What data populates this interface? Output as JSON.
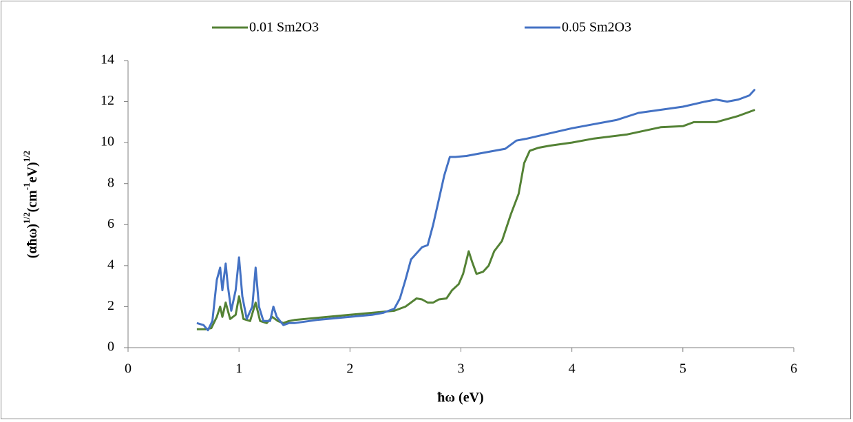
{
  "chart_data": {
    "type": "line",
    "x_label": "ħω (eV)",
    "y_label": [
      "(αħω)",
      "1/2",
      "(cm",
      "-1",
      "eV)",
      "1/2"
    ],
    "xlim": [
      0,
      6
    ],
    "xticks": [
      0,
      1,
      2,
      3,
      4,
      5,
      6
    ],
    "ylim": [
      0,
      14
    ],
    "yticks": [
      0,
      2,
      4,
      6,
      8,
      10,
      12,
      14
    ],
    "grid": false,
    "legend": "top",
    "series": [
      {
        "name": "0.01 Sm2O3",
        "color": "#548235",
        "x": [
          0.62,
          0.7,
          0.75,
          0.8,
          0.83,
          0.85,
          0.88,
          0.92,
          0.97,
          1.0,
          1.04,
          1.1,
          1.15,
          1.19,
          1.25,
          1.3,
          1.35,
          1.4,
          1.45,
          1.5,
          1.7,
          2.0,
          2.2,
          2.4,
          2.5,
          2.6,
          2.65,
          2.7,
          2.75,
          2.8,
          2.87,
          2.92,
          2.98,
          3.02,
          3.07,
          3.1,
          3.14,
          3.2,
          3.25,
          3.3,
          3.37,
          3.45,
          3.52,
          3.57,
          3.62,
          3.7,
          3.8,
          4.0,
          4.2,
          4.5,
          4.8,
          5.0,
          5.1,
          5.3,
          5.5,
          5.6,
          5.65
        ],
        "values": [
          0.9,
          0.9,
          0.95,
          1.5,
          2.0,
          1.5,
          2.2,
          1.4,
          1.6,
          2.5,
          1.4,
          1.3,
          2.2,
          1.3,
          1.2,
          1.5,
          1.3,
          1.2,
          1.3,
          1.35,
          1.45,
          1.6,
          1.7,
          1.8,
          2.0,
          2.4,
          2.35,
          2.2,
          2.2,
          2.35,
          2.4,
          2.8,
          3.1,
          3.6,
          4.7,
          4.2,
          3.6,
          3.7,
          4.0,
          4.7,
          5.2,
          6.5,
          7.5,
          9.0,
          9.6,
          9.75,
          9.85,
          10.0,
          10.2,
          10.4,
          10.75,
          10.8,
          11.0,
          11.0,
          11.3,
          11.5,
          11.6
        ]
      },
      {
        "name": "0.05 Sm2O3",
        "color": "#4472c4",
        "x": [
          0.62,
          0.68,
          0.72,
          0.76,
          0.8,
          0.83,
          0.85,
          0.88,
          0.9,
          0.93,
          0.97,
          1.0,
          1.03,
          1.07,
          1.12,
          1.15,
          1.18,
          1.22,
          1.28,
          1.31,
          1.34,
          1.4,
          1.45,
          1.5,
          1.7,
          2.0,
          2.2,
          2.3,
          2.4,
          2.45,
          2.5,
          2.55,
          2.6,
          2.65,
          2.7,
          2.75,
          2.8,
          2.85,
          2.9,
          2.95,
          3.05,
          3.2,
          3.4,
          3.5,
          3.6,
          3.8,
          4.0,
          4.2,
          4.4,
          4.6,
          4.8,
          5.0,
          5.2,
          5.3,
          5.4,
          5.5,
          5.6,
          5.65
        ],
        "values": [
          1.2,
          1.1,
          0.85,
          1.3,
          3.3,
          3.9,
          2.8,
          4.1,
          3.0,
          1.8,
          2.8,
          4.4,
          2.5,
          1.4,
          2.0,
          3.9,
          2.0,
          1.3,
          1.3,
          2.0,
          1.5,
          1.1,
          1.2,
          1.2,
          1.35,
          1.5,
          1.6,
          1.7,
          1.9,
          2.4,
          3.3,
          4.3,
          4.6,
          4.9,
          5.0,
          6.0,
          7.2,
          8.4,
          9.3,
          9.3,
          9.35,
          9.5,
          9.7,
          10.1,
          10.2,
          10.45,
          10.7,
          10.9,
          11.1,
          11.45,
          11.6,
          11.75,
          12.0,
          12.1,
          12.0,
          12.1,
          12.3,
          12.6
        ]
      }
    ]
  }
}
